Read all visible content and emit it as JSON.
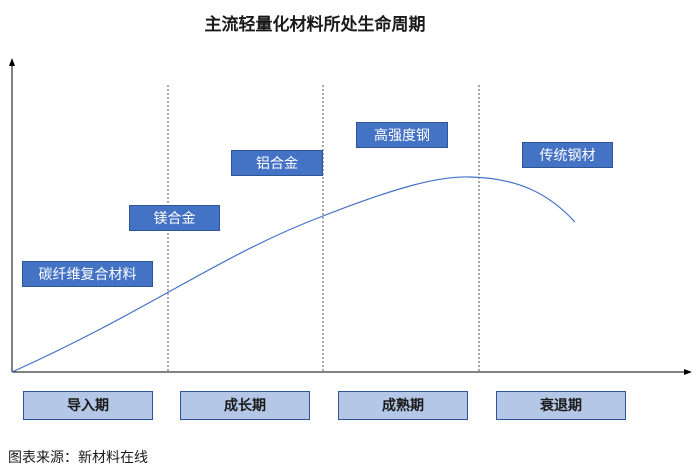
{
  "title": "主流轻量化材料所处生命周期",
  "materials": [
    {
      "label": "碳纤维复合材料"
    },
    {
      "label": "镁合金"
    },
    {
      "label": "铝合金"
    },
    {
      "label": "高强度钢"
    },
    {
      "label": "传统钢材"
    }
  ],
  "stages": [
    {
      "label": "导入期"
    },
    {
      "label": "成长期"
    },
    {
      "label": "成熟期"
    },
    {
      "label": "衰退期"
    }
  ],
  "source": "图表来源：新材料在线",
  "colors": {
    "material_fill": "#4472c4",
    "stage_fill": "#b4c7e7",
    "curve": "#4472c4",
    "axis": "#000000"
  }
}
